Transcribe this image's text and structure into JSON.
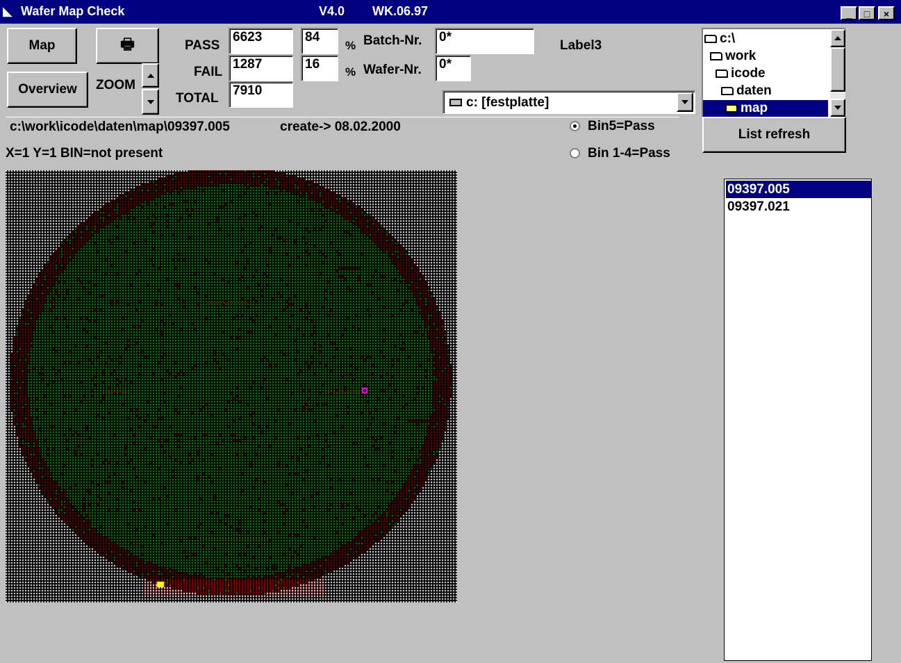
{
  "window": {
    "title": "Wafer Map  Check",
    "version": "V4.0",
    "build": "WK.06.97",
    "minimize_glyph": "_",
    "maximize_glyph": "□",
    "close_glyph": "×"
  },
  "toolbar": {
    "map_label": "Map",
    "print_glyph": "🖶",
    "overview_label": "Overview",
    "zoom_label": "ZOOM"
  },
  "stats": {
    "pass_label": "PASS",
    "fail_label": "FAIL",
    "total_label": "TOTAL",
    "pass_value": "6623",
    "fail_value": "1287",
    "total_value": "7910",
    "pass_percent": "84",
    "fail_percent": "16",
    "percent_sign": "%"
  },
  "batch": {
    "batch_label": "Batch-Nr.",
    "batch_value": "0*",
    "wafer_label": "Wafer-Nr.",
    "wafer_value": "0*",
    "label3": "Label3"
  },
  "drive": {
    "selected": "c: [festplatte]"
  },
  "tree": {
    "items": [
      {
        "label": "c:\\",
        "indent": 0
      },
      {
        "label": "work",
        "indent": 1
      },
      {
        "label": "icode",
        "indent": 2
      },
      {
        "label": "daten",
        "indent": 3
      },
      {
        "label": "map",
        "indent": 4,
        "selected": true
      }
    ]
  },
  "list_refresh_label": "List refresh",
  "status": {
    "path": "c:\\work\\icode\\daten\\map\\09397.005",
    "created": "create-> 08.02.2000",
    "position": "X=1  Y=1  BIN=not present"
  },
  "mode": {
    "option1": "Bin5=Pass",
    "option2": "Bin 1-4=Pass",
    "selected": "Bin5=Pass"
  },
  "files": {
    "items": [
      "09397.005",
      "09397.021"
    ],
    "selected": "09397.005"
  },
  "wafer_colors": {
    "pass": "#00a000",
    "fail": "#8b0000",
    "background_dot": "#ffffff",
    "grid": "#000000",
    "marker": "#ff00ff",
    "highlight": "#ffff00"
  }
}
